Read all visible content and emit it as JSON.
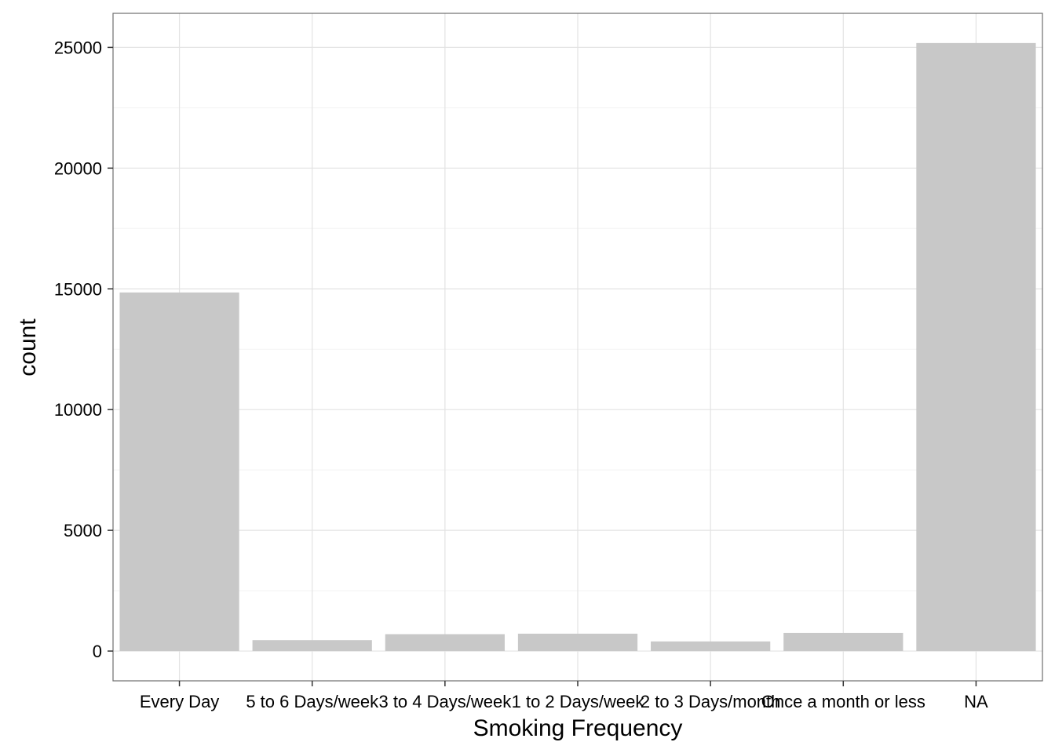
{
  "chart_data": {
    "type": "bar",
    "xlabel": "Smoking Frequency",
    "ylabel": "count",
    "categories": [
      "Every Day",
      "5 to 6 Days/week",
      "3 to 4 Days/week",
      "1 to 2 Days/week",
      "2 to 3 Days/month",
      "Once a month or less",
      "NA"
    ],
    "values": [
      14850,
      450,
      700,
      720,
      400,
      750,
      25180
    ],
    "ylim": [
      -1233,
      26410
    ],
    "yticks": [
      0,
      5000,
      10000,
      15000,
      20000,
      25000
    ],
    "ytick_labels": [
      "0",
      "5000",
      "10000",
      "15000",
      "20000",
      "25000"
    ],
    "grid": true,
    "legend": "none",
    "colors": {
      "bar": "#c8c8c8",
      "grid_major": "#e3e3e3",
      "grid_minor": "#f3f3f3",
      "panel_border": "#6e6e6e",
      "tick": "#333333"
    }
  }
}
